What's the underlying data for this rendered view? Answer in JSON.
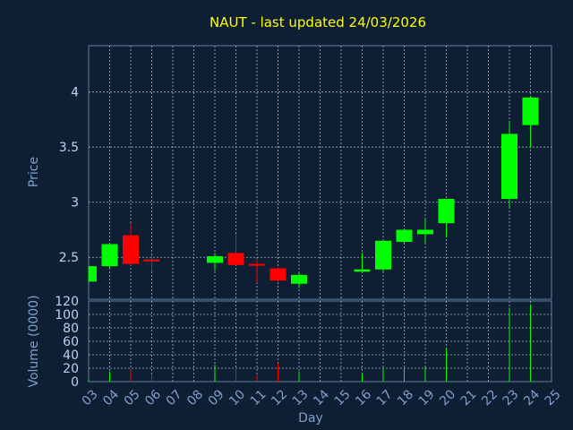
{
  "colors": {
    "background": "#0f1f33",
    "title": "#ffff00",
    "axis_text": "#7f9fcf",
    "tick_text": "#c0d0f0",
    "frame": "#5f7f9f",
    "grid": "#9fb3d0",
    "up": "#00ff00",
    "down": "#ff0000"
  },
  "chart_data": [
    {
      "type": "candlestick",
      "title": "NAUT - last updated 24/03/2026",
      "ylabel": "Price",
      "ylim": [
        2.12,
        4.42
      ],
      "yticks": [
        2.5,
        3,
        3.5,
        4
      ],
      "ytick_labels": [
        "2.5",
        "3",
        "3.5",
        "4"
      ],
      "grid": true,
      "candles": [
        {
          "day": "03",
          "open": 2.28,
          "high": 2.42,
          "low": 2.27,
          "close": 2.42
        },
        {
          "day": "04",
          "open": 2.42,
          "high": 2.62,
          "low": 2.4,
          "close": 2.62
        },
        {
          "day": "05",
          "open": 2.7,
          "high": 2.81,
          "low": 2.43,
          "close": 2.44
        },
        {
          "day": "06",
          "open": 2.48,
          "high": 2.52,
          "low": 2.37,
          "close": 2.47
        },
        {
          "day": "09",
          "open": 2.45,
          "high": 2.54,
          "low": 2.38,
          "close": 2.51
        },
        {
          "day": "10",
          "open": 2.54,
          "high": 2.71,
          "low": 2.43,
          "close": 2.43
        },
        {
          "day": "11",
          "open": 2.44,
          "high": 2.48,
          "low": 2.27,
          "close": 2.43
        },
        {
          "day": "12",
          "open": 2.4,
          "high": 2.4,
          "low": 2.28,
          "close": 2.29
        },
        {
          "day": "13",
          "open": 2.26,
          "high": 2.36,
          "low": 2.22,
          "close": 2.34
        },
        {
          "day": "16",
          "open": 2.37,
          "high": 2.54,
          "low": 2.36,
          "close": 2.39
        },
        {
          "day": "17",
          "open": 2.39,
          "high": 2.66,
          "low": 2.37,
          "close": 2.65
        },
        {
          "day": "18",
          "open": 2.64,
          "high": 2.75,
          "low": 2.63,
          "close": 2.75
        },
        {
          "day": "19",
          "open": 2.71,
          "high": 2.85,
          "low": 2.63,
          "close": 2.75
        },
        {
          "day": "20",
          "open": 2.81,
          "high": 3.03,
          "low": 2.68,
          "close": 3.03
        },
        {
          "day": "23",
          "open": 3.03,
          "high": 3.74,
          "low": 2.95,
          "close": 3.62
        },
        {
          "day": "24",
          "open": 3.7,
          "high": 3.96,
          "low": 3.49,
          "close": 3.95
        }
      ]
    },
    {
      "type": "bar",
      "ylabel": "Volume (0000)",
      "xlabel": "Day",
      "ylim": [
        0,
        120
      ],
      "yticks": [
        0,
        20,
        40,
        60,
        80,
        100,
        120
      ],
      "ytick_labels": [
        "0",
        "20",
        "40",
        "60",
        "80",
        "100",
        "120"
      ],
      "grid": true,
      "categories": [
        "03",
        "04",
        "05",
        "06",
        "07",
        "08",
        "09",
        "10",
        "11",
        "12",
        "13",
        "14",
        "15",
        "16",
        "17",
        "18",
        "19",
        "20",
        "21",
        "22",
        "23",
        "24",
        "25"
      ],
      "volume_bars": [
        {
          "day": "03",
          "value": 3,
          "dir": "up"
        },
        {
          "day": "04",
          "value": 15,
          "dir": "up"
        },
        {
          "day": "05",
          "value": 18,
          "dir": "down"
        },
        {
          "day": "06",
          "value": 10,
          "dir": "down"
        },
        {
          "day": "09",
          "value": 25,
          "dir": "up"
        },
        {
          "day": "10",
          "value": 20,
          "dir": "down"
        },
        {
          "day": "11",
          "value": 10,
          "dir": "down"
        },
        {
          "day": "12",
          "value": 27,
          "dir": "down"
        },
        {
          "day": "13",
          "value": 15,
          "dir": "up"
        },
        {
          "day": "16",
          "value": 12,
          "dir": "up"
        },
        {
          "day": "17",
          "value": 20,
          "dir": "up"
        },
        {
          "day": "18",
          "value": 20,
          "dir": "up"
        },
        {
          "day": "19",
          "value": 22,
          "dir": "up"
        },
        {
          "day": "20",
          "value": 50,
          "dir": "up"
        },
        {
          "day": "23",
          "value": 110,
          "dir": "up"
        },
        {
          "day": "24",
          "value": 115,
          "dir": "up"
        }
      ]
    }
  ]
}
